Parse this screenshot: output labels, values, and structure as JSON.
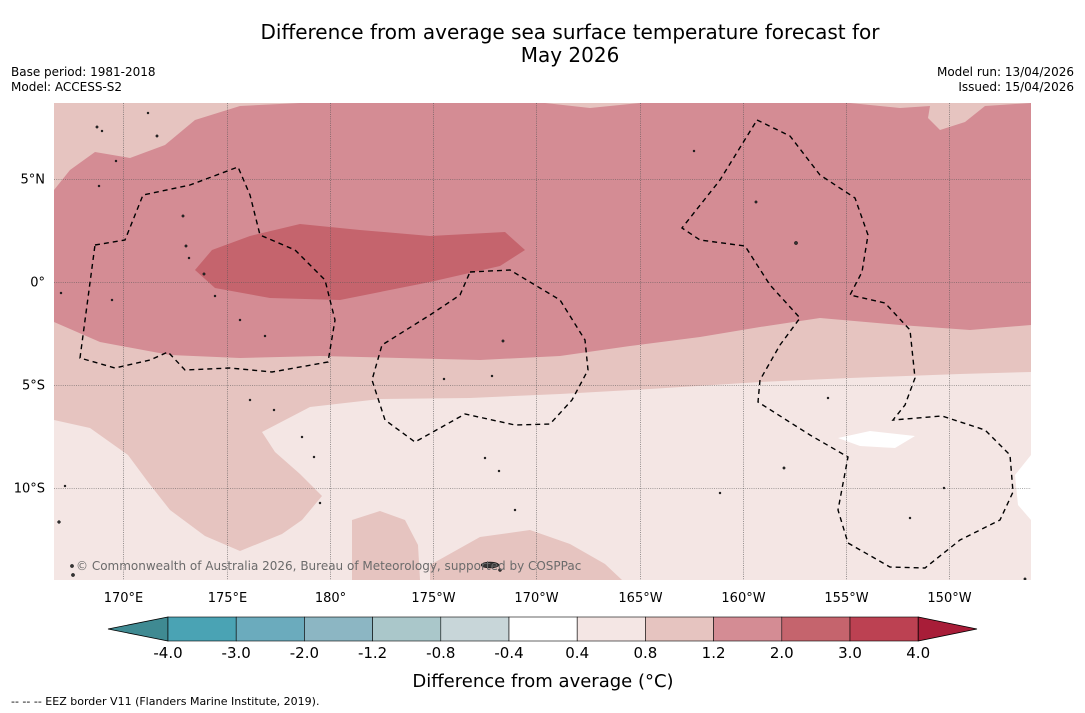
{
  "header": {
    "title_line1": "Difference from average sea surface temperature forecast for",
    "title_line2": "May 2026",
    "base_period": "Base period: 1981-2018",
    "model": "Model: ACCESS-S2",
    "model_run": "Model run: 13/04/2026",
    "issued": "Issued: 15/04/2026"
  },
  "map": {
    "lon_range_deg": [
      166,
      213
    ],
    "lat_range_deg": [
      -14,
      8.5
    ],
    "lat_labels": [
      "5°N",
      "0°",
      "5°S",
      "10°S"
    ],
    "lon_labels": [
      "170°E",
      "175°E",
      "180°",
      "175°W",
      "170°W",
      "165°W",
      "160°W",
      "155°W",
      "150°W"
    ],
    "copyright": "© Commonwealth of Australia 2026, Bureau of Meteorology, supported by COSPPac"
  },
  "colorbar": {
    "colors": [
      "#3f8a92",
      "#4aa3b4",
      "#6babbd",
      "#8cb6c3",
      "#aac7ca",
      "#c8d6d9",
      "#ffffff",
      "#f4e6e4",
      "#e6c4c0",
      "#d48c94",
      "#c5646d",
      "#bc4152",
      "#a81d38"
    ],
    "tick_labels": [
      "-4.0",
      "-3.0",
      "-2.0",
      "-1.2",
      "-0.8",
      "-0.4",
      "0.4",
      "0.8",
      "1.2",
      "2.0",
      "3.0",
      "4.0"
    ],
    "title": "Difference from average (°C)"
  },
  "footnote": "--  --  -- EEZ border V11 (Flanders Marine Institute, 2019)."
}
